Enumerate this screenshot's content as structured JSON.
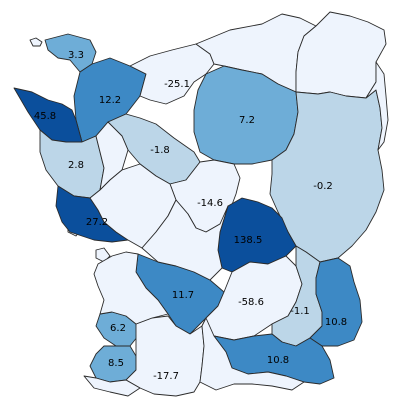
{
  "map": {
    "title": "",
    "colors": {
      "v1": "#eef4fd",
      "v2": "#bcd6e8",
      "v3": "#6eadd7",
      "v4": "#3d89c5",
      "v5": "#0b4f9c"
    },
    "regions": [
      {
        "key": "r_3_3",
        "label": "3.3",
        "shade": "v3"
      },
      {
        "key": "r_12_2",
        "label": "12.2",
        "shade": "v4"
      },
      {
        "key": "r_25_1",
        "label": "-25.1",
        "shade": "v1"
      },
      {
        "key": "r_ne_a",
        "label": "",
        "shade": "v1"
      },
      {
        "key": "r_ne_b",
        "label": "",
        "shade": "v1"
      },
      {
        "key": "r_45_8",
        "label": "45.8",
        "shade": "v5"
      },
      {
        "key": "r_7_2",
        "label": "7.2",
        "shade": "v3"
      },
      {
        "key": "r_m1_8",
        "label": "-1.8",
        "shade": "v2"
      },
      {
        "key": "r_2_8",
        "label": "2.8",
        "shade": "v2"
      },
      {
        "key": "r_m0_2",
        "label": "-0.2",
        "shade": "v2"
      },
      {
        "key": "r_14_6",
        "label": "-14.6",
        "shade": "v1"
      },
      {
        "key": "r_27_2",
        "label": "27.2",
        "shade": "v5"
      },
      {
        "key": "r_138_5",
        "label": "138.5",
        "shade": "v5"
      },
      {
        "key": "r_11_7",
        "label": "11.7",
        "shade": "v4"
      },
      {
        "key": "r_58_6",
        "label": "-58.6",
        "shade": "v1"
      },
      {
        "key": "r_m1_1",
        "label": "-1.1",
        "shade": "v2"
      },
      {
        "key": "r_10_8a",
        "label": "10.8",
        "shade": "v4"
      },
      {
        "key": "r_6_2",
        "label": "6.2",
        "shade": "v3"
      },
      {
        "key": "r_8_5",
        "label": "8.5",
        "shade": "v3"
      },
      {
        "key": "r_17_7",
        "label": "-17.7",
        "shade": "v1"
      },
      {
        "key": "r_10_8b",
        "label": "10.8",
        "shade": "v4"
      },
      {
        "key": "r_w_a",
        "label": "",
        "shade": "v1"
      },
      {
        "key": "r_w_b",
        "label": "",
        "shade": "v1"
      },
      {
        "key": "r_c_a",
        "label": "",
        "shade": "v1"
      },
      {
        "key": "r_c_b",
        "label": "",
        "shade": "v1"
      },
      {
        "key": "r_s_a",
        "label": "",
        "shade": "v1"
      },
      {
        "key": "r_s_b",
        "label": "",
        "shade": "v1"
      },
      {
        "key": "r_e_a",
        "label": "",
        "shade": "v1"
      }
    ]
  }
}
